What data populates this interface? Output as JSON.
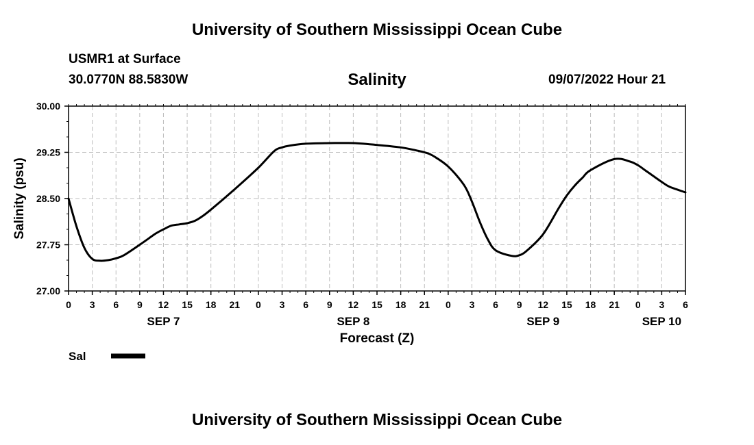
{
  "page": {
    "title_top": "University of Southern Mississippi Ocean Cube",
    "title_bottom": "University of Southern Mississippi Ocean Cube",
    "station": "USMR1 at Surface",
    "coords": "30.0770N  88.5830W",
    "datetime": "09/07/2022 Hour 21"
  },
  "chart_data": {
    "type": "line",
    "title": "Salinity",
    "xlabel": "Forecast (Z)",
    "ylabel": "Salinity (psu)",
    "ylim": [
      27.0,
      30.0
    ],
    "yticks": [
      "27.00",
      "27.75",
      "28.50",
      "29.25",
      "30.00"
    ],
    "x_unit": "forecast hours from SEP 7 00Z",
    "xlim": [
      0,
      78
    ],
    "x_tick_labels": [
      "0",
      "3",
      "6",
      "9",
      "12",
      "15",
      "18",
      "21",
      "0",
      "3",
      "6",
      "9",
      "12",
      "15",
      "18",
      "21",
      "0",
      "3",
      "6",
      "9",
      "12",
      "15",
      "18",
      "21",
      "0",
      "3",
      "6"
    ],
    "day_labels": [
      {
        "label": "SEP 7",
        "hour": 12
      },
      {
        "label": "SEP 8",
        "hour": 36
      },
      {
        "label": "SEP 9",
        "hour": 60
      },
      {
        "label": "SEP 10",
        "hour": 75
      }
    ],
    "grid": true,
    "legend": [
      {
        "name": "Sal",
        "color": "#000000"
      }
    ],
    "series": [
      {
        "name": "Sal",
        "color": "#000000",
        "x": [
          0,
          1,
          2,
          3,
          4,
          5,
          6,
          7,
          9,
          11,
          12,
          13,
          14,
          15,
          16,
          17,
          18,
          21,
          24,
          26,
          27,
          28,
          30,
          33,
          36,
          39,
          42,
          44,
          45,
          46,
          48,
          50,
          51,
          52,
          53,
          54,
          56,
          57,
          58,
          60,
          62,
          63,
          64,
          65,
          66,
          69,
          71,
          72,
          73,
          74,
          75,
          76,
          78
        ],
        "values": [
          28.5,
          28.05,
          27.7,
          27.52,
          27.49,
          27.5,
          27.53,
          27.58,
          27.75,
          27.93,
          28.0,
          28.06,
          28.08,
          28.1,
          28.14,
          28.22,
          28.32,
          28.65,
          29.0,
          29.27,
          29.33,
          29.36,
          29.39,
          29.4,
          29.4,
          29.37,
          29.33,
          29.28,
          29.25,
          29.2,
          29.02,
          28.72,
          28.45,
          28.12,
          27.84,
          27.66,
          27.57,
          27.58,
          27.66,
          27.92,
          28.35,
          28.55,
          28.71,
          28.84,
          28.96,
          29.14,
          29.1,
          29.04,
          28.95,
          28.86,
          28.77,
          28.69,
          28.6
        ]
      }
    ]
  }
}
